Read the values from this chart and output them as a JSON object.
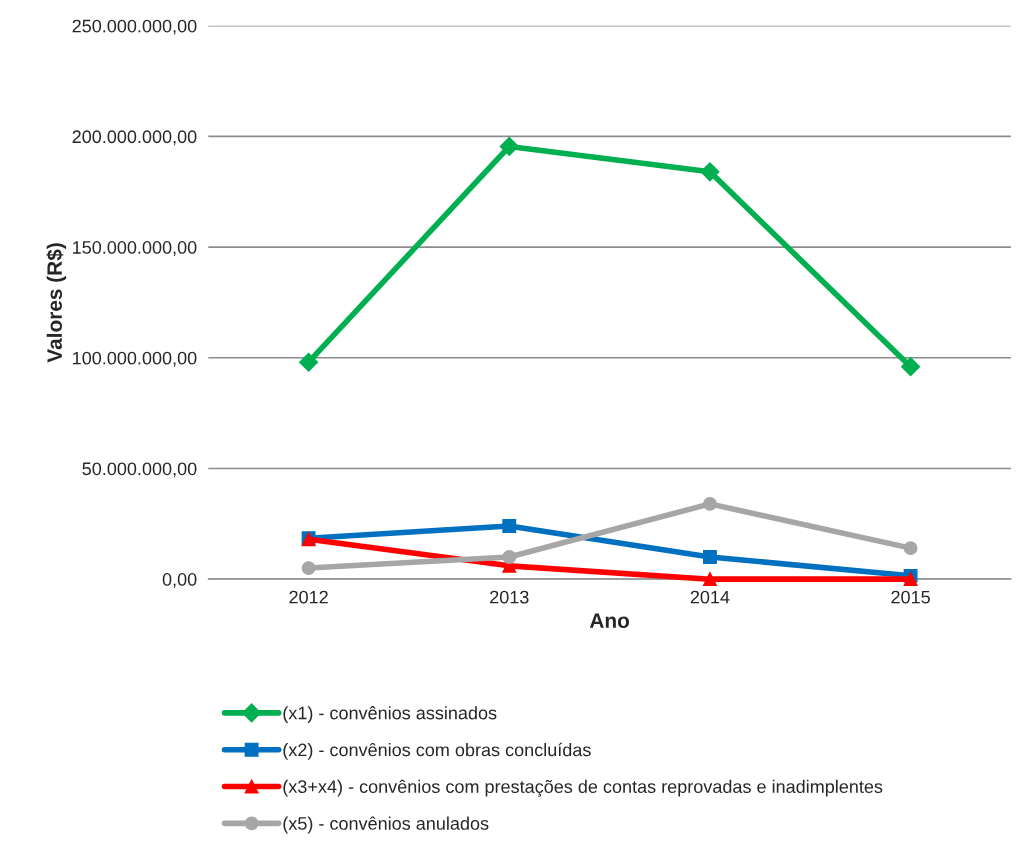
{
  "chart_data": {
    "type": "line",
    "xlabel": "Ano",
    "ylabel": "Valores (R$)",
    "categories": [
      "2012",
      "2013",
      "2014",
      "2015"
    ],
    "series": [
      {
        "name": "(x1) - convênios assinados",
        "color": "#00b050",
        "marker": "diamond",
        "values": [
          98000000,
          195500000,
          184000000,
          96000000
        ]
      },
      {
        "name": "(x2) - convênios com obras concluídas",
        "color": "#0070c0",
        "marker": "square",
        "values": [
          18500000,
          24000000,
          10000000,
          1500000
        ]
      },
      {
        "name": "(x3+x4) - convênios com prestações de contas reprovadas e inadimplentes",
        "color": "#ff0000",
        "marker": "triangle",
        "values": [
          18000000,
          6000000,
          0,
          0
        ]
      },
      {
        "name": "(x5) - convênios anulados",
        "color": "#a6a6a6",
        "marker": "circle",
        "values": [
          5000000,
          10000000,
          34000000,
          14000000
        ]
      }
    ],
    "ylim": [
      0,
      250000000
    ],
    "yticks": [
      {
        "value": 0,
        "label": "0,00"
      },
      {
        "value": 50000000,
        "label": "50.000.000,00"
      },
      {
        "value": 100000000,
        "label": "100.000.000,00"
      },
      {
        "value": 150000000,
        "label": "150.000.000,00"
      },
      {
        "value": 200000000,
        "label": "200.000.000,00"
      },
      {
        "value": 250000000,
        "label": "250.000.000,00"
      }
    ],
    "grid": "y",
    "legend": "bottom",
    "line_style": "solid"
  }
}
